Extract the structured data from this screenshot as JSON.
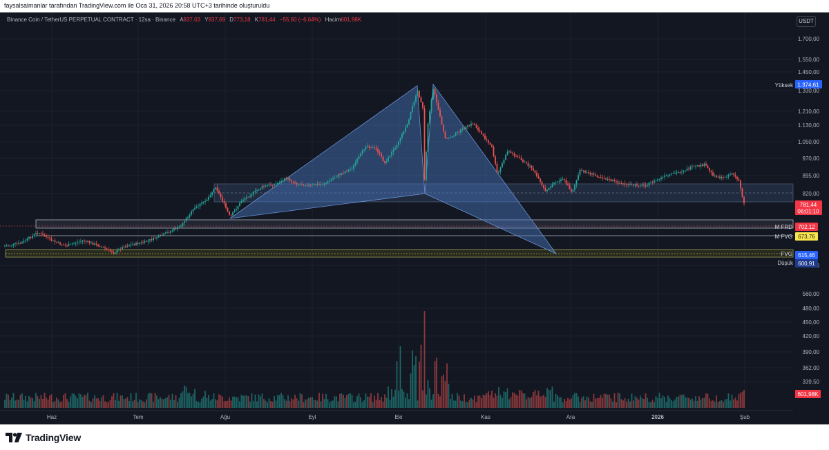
{
  "attribution": "faysalsalmanlar tarafından TradingView.com ile Oca 31, 2026 20:58 UTC+3 tarihinde oluşturuldu",
  "legend": {
    "symbol": "Binance Coin / TetherUS PERPETUAL CONTRACT · 12sa · Binance",
    "open_label": "A",
    "open": "837,03",
    "high_label": "Y",
    "high": "837,69",
    "low_label": "D",
    "low": "773,18",
    "close_label": "K",
    "close": "781,44",
    "change": "−55,60 (−6,64%)",
    "volume_label": "Hacim",
    "volume": "601,98K"
  },
  "currency_button": "USDT",
  "price_scale": [
    "1.700,00",
    "1.550,00",
    "1.450,00",
    "1.330,00",
    "1.210,00",
    "1.130,00",
    "1.050,00",
    "970,00",
    "895,00",
    "820,00",
    "640,00",
    "560,00",
    "480,00",
    "450,00",
    "420,00",
    "390,00",
    "362,00",
    "339,50"
  ],
  "time_axis": [
    "Haz",
    "Tem",
    "Ağu",
    "Eyl",
    "Eki",
    "Kas",
    "Ara",
    "2026",
    "Şub"
  ],
  "tags": {
    "high": {
      "label": "Yüksek",
      "value": "1.374,61"
    },
    "last": {
      "value": "781,44",
      "countdown": "06:01:10"
    },
    "mfrd": {
      "label": "M FRD",
      "value": "702,12"
    },
    "mfvg": {
      "label": "M FVG",
      "value": "673,76"
    },
    "fvg": {
      "label": "FVG",
      "value": "615,46"
    },
    "low": {
      "label": "Düşük",
      "value": "600,91"
    },
    "volume": {
      "value": "601,98K"
    }
  },
  "brand": "TradingView",
  "colors": {
    "background": "#131722",
    "up": "#26a69a",
    "down": "#ef5350",
    "pattern": "#4a78c2",
    "zone": "#2b3d5a"
  }
}
